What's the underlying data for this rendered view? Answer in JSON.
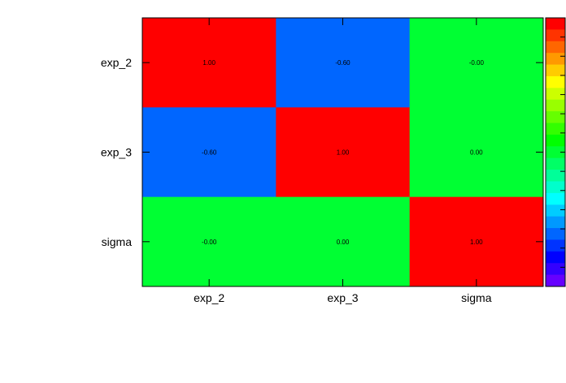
{
  "chart_data": {
    "type": "heatmap",
    "title": "",
    "xlabel": "",
    "ylabel": "",
    "x_categories": [
      "exp_2",
      "exp_3",
      "sigma"
    ],
    "y_categories": [
      "exp_2",
      "exp_3",
      "sigma"
    ],
    "values": [
      [
        1.0,
        -0.6,
        -0.0
      ],
      [
        -0.6,
        1.0,
        0.0
      ],
      [
        -0.0,
        0.0,
        1.0
      ]
    ],
    "value_labels": [
      [
        "1.00",
        "-0.60",
        "-0.00"
      ],
      [
        "-0.60",
        "1.00",
        "0.00"
      ],
      [
        "-0.00",
        "0.00",
        "1.00"
      ]
    ],
    "zlim": [
      -1,
      1
    ],
    "colorbar": "right",
    "grid": false,
    "palette": [
      "#6600ff",
      "#3300ff",
      "#0000ff",
      "#0033ff",
      "#0066ff",
      "#0099ff",
      "#00ccff",
      "#00ffff",
      "#00ffcc",
      "#00ff99",
      "#00ff66",
      "#00ff33",
      "#00ff00",
      "#33ff00",
      "#66ff00",
      "#99ff00",
      "#ccff00",
      "#ffff00",
      "#ffcc00",
      "#ff9900",
      "#ff6600",
      "#ff3300",
      "#ff0000"
    ]
  }
}
